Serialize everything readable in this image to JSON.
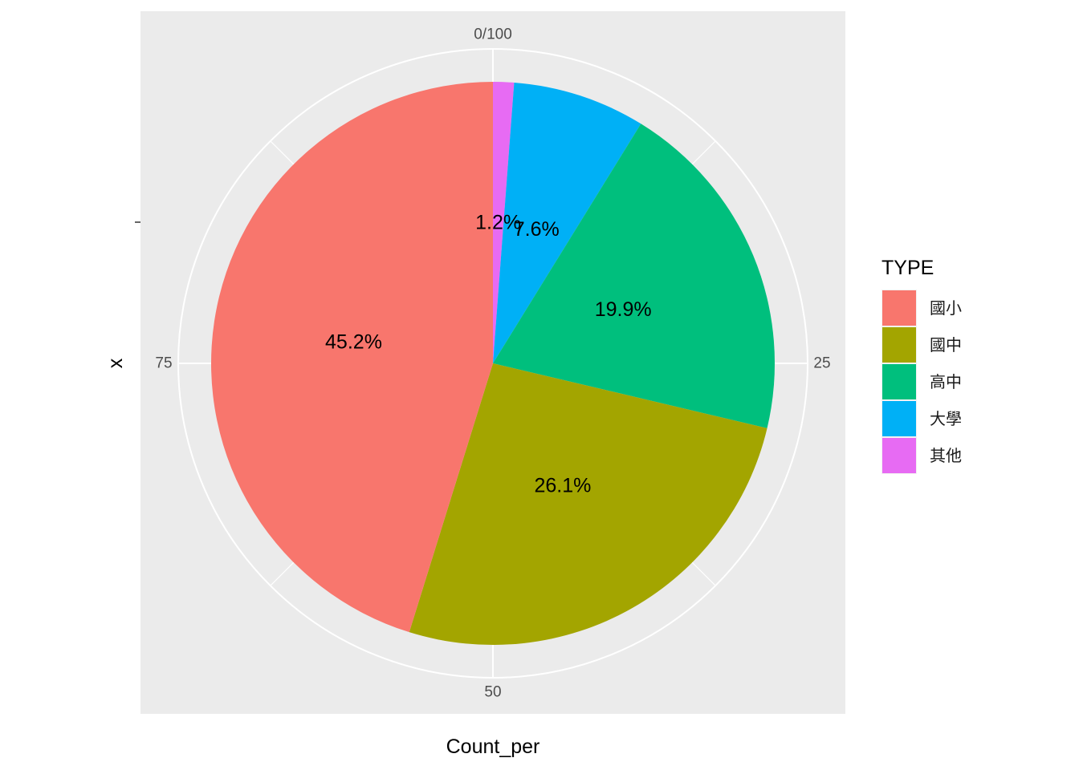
{
  "chart_data": {
    "type": "pie",
    "xlabel": "Count_per",
    "ylabel": "x",
    "theta_ticks": [
      {
        "value": 0,
        "label": "0/100"
      },
      {
        "value": 25,
        "label": "25"
      },
      {
        "value": 50,
        "label": "50"
      },
      {
        "value": 75,
        "label": "75"
      }
    ],
    "legend": {
      "title": "TYPE",
      "position": "right"
    },
    "slices": [
      {
        "name": "國小",
        "value": 45.2,
        "label": "45.2%",
        "color": "#F8766D"
      },
      {
        "name": "國中",
        "value": 26.1,
        "label": "26.1%",
        "color": "#A3A500"
      },
      {
        "name": "高中",
        "value": 19.9,
        "label": "19.9%",
        "color": "#00BF7D"
      },
      {
        "name": "大學",
        "value": 7.6,
        "label": "7.6%",
        "color": "#00B0F6"
      },
      {
        "name": "其他",
        "value": 1.2,
        "label": "1.2%",
        "color": "#E76BF3"
      }
    ],
    "panel_background": "#EBEBEB",
    "grid_color": "#FFFFFF"
  }
}
